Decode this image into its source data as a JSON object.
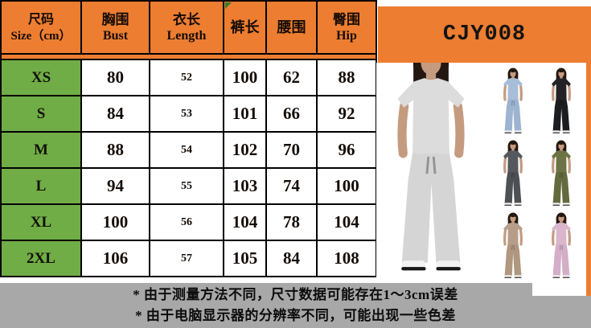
{
  "theme": {
    "header_bg": "#ED7D31",
    "banner_bg": "#ED7D31",
    "size_col_bg": "#70AD47",
    "note_bg": "#A8A8A8",
    "comment_marker": "#2E7D32",
    "border": "#000000"
  },
  "product": {
    "code": "CJY008"
  },
  "table": {
    "columns": [
      {
        "cn": "尺码",
        "en": "Size（cm）"
      },
      {
        "cn": "胸围",
        "en": "Bust"
      },
      {
        "cn": "衣长",
        "en": "Length"
      },
      {
        "cn": "裤长",
        "en": ""
      },
      {
        "cn": "腰围",
        "en": ""
      },
      {
        "cn": "臀围",
        "en": "Hip"
      }
    ],
    "rows": [
      {
        "size": "XS",
        "values": [
          "80",
          "52",
          "100",
          "62",
          "88"
        ]
      },
      {
        "size": "S",
        "values": [
          "84",
          "53",
          "101",
          "66",
          "92"
        ]
      },
      {
        "size": "M",
        "values": [
          "88",
          "54",
          "102",
          "70",
          "96"
        ]
      },
      {
        "size": "L",
        "values": [
          "94",
          "55",
          "103",
          "74",
          "100"
        ]
      },
      {
        "size": "XL",
        "values": [
          "100",
          "56",
          "104",
          "78",
          "104"
        ]
      },
      {
        "size": "2XL",
        "values": [
          "106",
          "57",
          "105",
          "84",
          "108"
        ]
      }
    ]
  },
  "notes": [
    "* 由于测量方法不同，尺寸数据可能存在1～3cm误差",
    "* 由于电脑显示器的分辨率不同，可能出现一些色差"
  ],
  "figure_palette": {
    "hair": "#241711",
    "skin": "#c59b80",
    "shoe": "#f2f2f2",
    "shoe_sole": "#17171a"
  },
  "product_images": {
    "main": {
      "name": "heather-gray-set-model-photo",
      "top": "#dcdcdc",
      "pants": "#d5d5d5"
    },
    "variants": [
      {
        "name": "light-blue",
        "top": "#a8bdd8",
        "pants": "#9db4d0"
      },
      {
        "name": "black",
        "top": "#232325",
        "pants": "#1b1d20"
      },
      {
        "name": "dark-gray",
        "top": "#55585c",
        "pants": "#4d5054"
      },
      {
        "name": "olive-green",
        "top": "#6d7344",
        "pants": "#646a3e"
      },
      {
        "name": "khaki",
        "top": "#b59d88",
        "pants": "#b0977f"
      },
      {
        "name": "pink",
        "top": "#d9b6cb",
        "pants": "#d4aec7"
      }
    ]
  }
}
